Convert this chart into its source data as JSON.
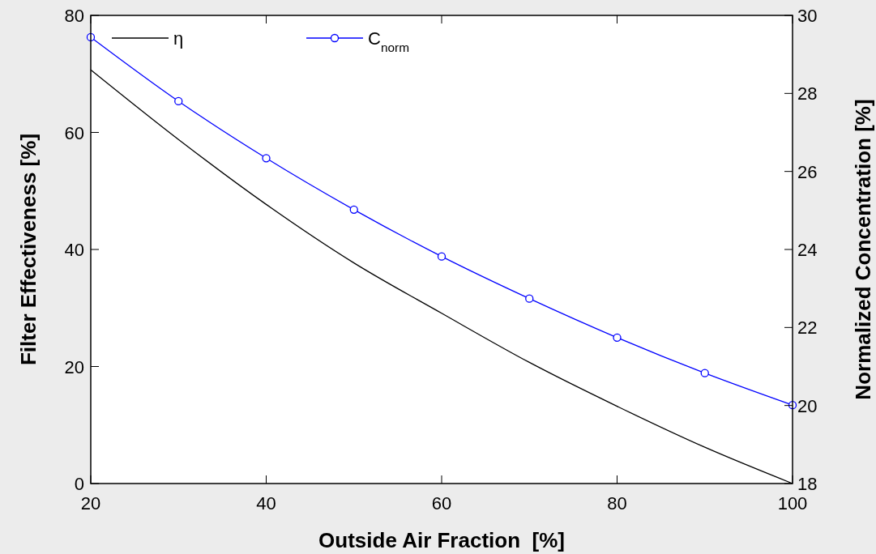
{
  "chart_data": {
    "type": "line",
    "xlabel": "Outside Air Fraction  [%]",
    "ylabel": "Filter Effectiveness [%]",
    "y2label": "Normalized Concentration [%]",
    "x": [
      20,
      30,
      40,
      50,
      60,
      70,
      80,
      90,
      100
    ],
    "series": [
      {
        "name": "η",
        "color": "#000000",
        "marker": "none",
        "values": [
          70.7,
          58.8,
          47.7,
          37.7,
          29.1,
          20.7,
          13.2,
          6.2,
          0
        ]
      },
      {
        "name": "C$_{norm}$",
        "color": "#0000ff",
        "marker": "circle",
        "axis": "y2",
        "values": [
          29.44,
          27.8,
          26.34,
          25.02,
          23.82,
          22.74,
          21.74,
          20.83,
          20.01
        ]
      }
    ],
    "xlim": [
      20,
      100
    ],
    "xticks": [
      20,
      40,
      60,
      80,
      100
    ],
    "ylim": [
      0,
      80
    ],
    "yticks": [
      0,
      20,
      40,
      60,
      80
    ],
    "y2lim": [
      18,
      30
    ],
    "y2ticks": [
      18,
      20,
      22,
      24,
      26,
      28,
      30
    ],
    "grid": false,
    "legend": "top left",
    "line_style": "solid"
  }
}
